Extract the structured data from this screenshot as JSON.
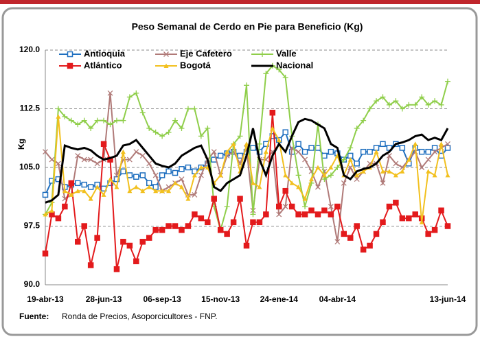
{
  "chart_data": {
    "type": "line",
    "title": "Peso Semanal de Cerdo en Pie para Beneficio (Kg)",
    "y_label": "Kg",
    "source_label": "Fuente:",
    "source": "Ronda de Precios, Asoporcicultores - FNP.",
    "categories": [
      "19-abr-13",
      null,
      null,
      null,
      null,
      null,
      null,
      null,
      null,
      "28-jun-13",
      null,
      null,
      null,
      null,
      null,
      null,
      null,
      null,
      "06-sep-13",
      null,
      null,
      null,
      null,
      null,
      null,
      null,
      null,
      "15-nov-13",
      null,
      null,
      null,
      null,
      null,
      null,
      null,
      null,
      "24-ene-14",
      null,
      null,
      null,
      null,
      null,
      null,
      null,
      null,
      "04-abr-14",
      null,
      null,
      null,
      null,
      null,
      null,
      null,
      null,
      null,
      null,
      null,
      null,
      null,
      null,
      null,
      null,
      "13-jun-14"
    ],
    "ylim": [
      90,
      120
    ],
    "yticks": [
      {
        "value": 90,
        "label": "90.0"
      },
      97.5,
      {
        "value": 105,
        "label": "105.0"
      },
      112.5,
      {
        "value": 120,
        "label": "120.0"
      }
    ],
    "grid": true,
    "legend": "upper left",
    "series": [
      {
        "name": "Antioquia",
        "color": "#1f6fbf",
        "marker": "square",
        "values": [
          101.5,
          103.3,
          103.5,
          102.5,
          102.8,
          103,
          102.8,
          102.5,
          102.8,
          102.3,
          103,
          103.5,
          104.5,
          104,
          103.8,
          104,
          103,
          102.5,
          104,
          104.5,
          104.3,
          104.8,
          105,
          104.5,
          105,
          105.5,
          106,
          106.5,
          106.8,
          107,
          106.5,
          107,
          107.5,
          107,
          108,
          109,
          108.5,
          109.5,
          107,
          108,
          107,
          107.5,
          107.5,
          106.5,
          107,
          106.8,
          106,
          106.5,
          105.5,
          107,
          107,
          107.5,
          108,
          107.5,
          108,
          107.5,
          105.5,
          107.5,
          107,
          107,
          107.5,
          106.5,
          107.5
        ]
      },
      {
        "name": "Eje Cafetero",
        "color": "#b07a78",
        "marker": "x",
        "values": [
          107,
          106,
          105.5,
          101,
          101.5,
          106.5,
          106,
          106,
          105.5,
          106,
          114.5,
          104,
          106,
          106,
          107,
          106.5,
          105.5,
          104,
          102,
          102.5,
          103,
          103.5,
          101.5,
          101.5,
          104,
          106,
          107,
          104,
          106.5,
          107,
          105.5,
          107.5,
          99.5,
          106,
          106,
          107,
          99,
          100,
          107.5,
          107,
          106,
          104.5,
          102.5,
          104.5,
          100,
          95.5,
          103,
          105,
          103.5,
          104.5,
          105.5,
          105.5,
          103,
          106.5,
          105.5,
          105,
          106,
          107,
          105,
          106,
          107,
          107.5,
          108
        ]
      },
      {
        "name": "Valle",
        "color": "#8fce4a",
        "marker": "plus",
        "values": [
          99,
          100.5,
          112.5,
          111.5,
          111,
          110.5,
          111,
          110,
          111,
          111,
          110.5,
          111,
          111,
          114,
          114.5,
          112,
          110,
          109.5,
          109,
          109.5,
          111,
          110,
          112.5,
          112.5,
          109,
          110,
          100,
          97,
          100,
          108,
          109,
          115.5,
          99,
          108,
          117,
          118,
          117.5,
          116.5,
          109,
          104,
          100,
          103,
          110.5,
          103.5,
          104,
          105,
          106,
          107.5,
          110,
          111,
          112.5,
          113.5,
          114,
          113,
          113.5,
          112.5,
          113,
          113,
          114,
          113,
          113.5,
          113,
          116
        ]
      },
      {
        "name": "Atlántico",
        "color": "#e31a1c",
        "marker": "square",
        "values": [
          94,
          99,
          98.5,
          100,
          103,
          95.5,
          97.5,
          92.5,
          96,
          108,
          106,
          92,
          95.5,
          95,
          93,
          95.5,
          96,
          97,
          97,
          97.5,
          97.5,
          97,
          97.5,
          99,
          98.5,
          98,
          101,
          97,
          96.5,
          98,
          101,
          95,
          98,
          98,
          99,
          112,
          100,
          102,
          100,
          99,
          99,
          99.5,
          99,
          99.5,
          99,
          100,
          96.5,
          96,
          97.5,
          94.5,
          95,
          96.5,
          98,
          100,
          100.5,
          98.5,
          98.5,
          99,
          98.5,
          96.5,
          97,
          99.5,
          97.5
        ]
      },
      {
        "name": "Bogotá",
        "color": "#f2c01e",
        "marker": "triangle",
        "values": [
          99,
          99.5,
          111.5,
          102,
          101.5,
          102,
          102,
          101,
          102.5,
          101.5,
          103.5,
          102.5,
          107,
          102,
          102.5,
          102,
          102.5,
          102,
          102,
          102,
          103,
          102.5,
          101,
          104,
          105,
          105,
          103,
          104,
          107,
          108,
          104.5,
          108,
          103,
          102.5,
          107,
          110,
          108.5,
          104,
          103,
          102.5,
          101,
          103.5,
          105,
          104,
          105,
          106.5,
          104,
          106,
          104,
          104.5,
          105,
          107,
          104.5,
          104.5,
          104,
          104.5,
          106,
          108,
          98,
          104.5,
          104,
          108,
          104
        ]
      },
      {
        "name": "Nacional",
        "color": "#000000",
        "marker": "none",
        "values": [
          100.5,
          100.8,
          101.5,
          107.8,
          107.5,
          107.3,
          107.5,
          107.2,
          106.5,
          106,
          106.2,
          106.5,
          107.8,
          108,
          108.5,
          107.5,
          106.5,
          105.5,
          105.2,
          105,
          105.5,
          106.5,
          107,
          107.5,
          107.8,
          106,
          102.5,
          102,
          103,
          103.5,
          104,
          106.5,
          110,
          106,
          104,
          106.5,
          108,
          107,
          109,
          110.8,
          111.2,
          111,
          110.5,
          110,
          108,
          107.5,
          104,
          103.5,
          104.5,
          104.8,
          105,
          105.5,
          106.5,
          107,
          108,
          108.2,
          108.5,
          109,
          109.2,
          108.5,
          108.8,
          108.5,
          110
        ]
      }
    ]
  }
}
